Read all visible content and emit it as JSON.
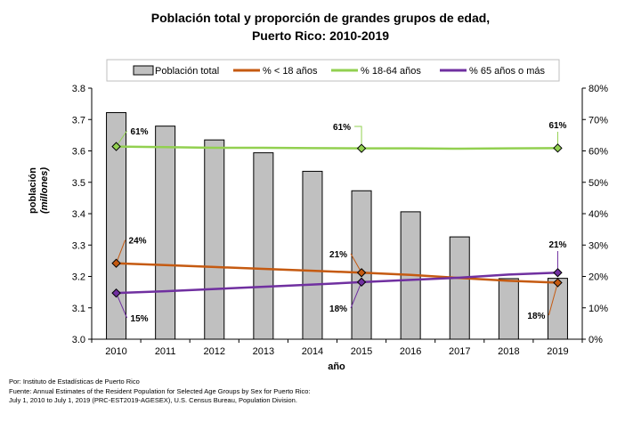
{
  "chart_data": {
    "type": "bar",
    "title_line1": "Población total y proporción de grandes grupos de edad,",
    "title_line2": "Puerto Rico: 2010-2019",
    "ylabel_line1": "población",
    "ylabel_line2": "(millones)",
    "xlabel": "año",
    "categories": [
      "2010",
      "2011",
      "2012",
      "2013",
      "2014",
      "2015",
      "2016",
      "2017",
      "2018",
      "2019"
    ],
    "ylim": [
      3.0,
      3.8
    ],
    "yticks": [
      "3.0",
      "3.1",
      "3.2",
      "3.3",
      "3.4",
      "3.5",
      "3.6",
      "3.7",
      "3.8"
    ],
    "y2lim": [
      0,
      80
    ],
    "y2ticks": [
      "0%",
      "10%",
      "20%",
      "30%",
      "40%",
      "50%",
      "60%",
      "70%",
      "80%"
    ],
    "grid": false,
    "legend_position": "top",
    "bar_series": {
      "name": "Población total",
      "axis": "left",
      "color": "#c0c0c0",
      "values": [
        3.722,
        3.679,
        3.635,
        3.594,
        3.535,
        3.473,
        3.406,
        3.326,
        3.193,
        3.194
      ]
    },
    "line_series": [
      {
        "name": "% < 18 años",
        "axis": "right",
        "color": "#c55a11",
        "values": [
          24.2,
          23.6,
          23.0,
          22.4,
          21.8,
          21.2,
          20.5,
          19.5,
          18.6,
          18.0
        ]
      },
      {
        "name": "% 18-64 años",
        "axis": "right",
        "color": "#92d050",
        "values": [
          61.4,
          61.2,
          61.0,
          61.0,
          60.9,
          60.8,
          60.8,
          60.7,
          60.8,
          60.9
        ]
      },
      {
        "name": "% 65 años o más",
        "axis": "right",
        "color": "#7030a0",
        "values": [
          14.7,
          15.3,
          16.0,
          16.7,
          17.4,
          18.2,
          18.9,
          19.6,
          20.6,
          21.2
        ]
      }
    ],
    "annotations": [
      {
        "series": 0,
        "index": 0,
        "text": "24%"
      },
      {
        "series": 1,
        "index": 0,
        "text": "61%"
      },
      {
        "series": 2,
        "index": 0,
        "text": "15%"
      },
      {
        "series": 0,
        "index": 5,
        "text": "21%"
      },
      {
        "series": 1,
        "index": 5,
        "text": "61%"
      },
      {
        "series": 2,
        "index": 5,
        "text": "18%"
      },
      {
        "series": 0,
        "index": 9,
        "text": "18%"
      },
      {
        "series": 1,
        "index": 9,
        "text": "61%"
      },
      {
        "series": 2,
        "index": 9,
        "text": "21%"
      }
    ]
  },
  "notes": {
    "line1": "Por: Instituto de Estadísticas de Puerto Rico",
    "line2": "Fuente: Annual Estimates of the Resident Population for Selected Age Groups by Sex for Puerto Rico:",
    "line3": "July 1, 2010 to July 1, 2019 (PRC-EST2019-AGESEX), U.S. Census Bureau, Population Division."
  }
}
